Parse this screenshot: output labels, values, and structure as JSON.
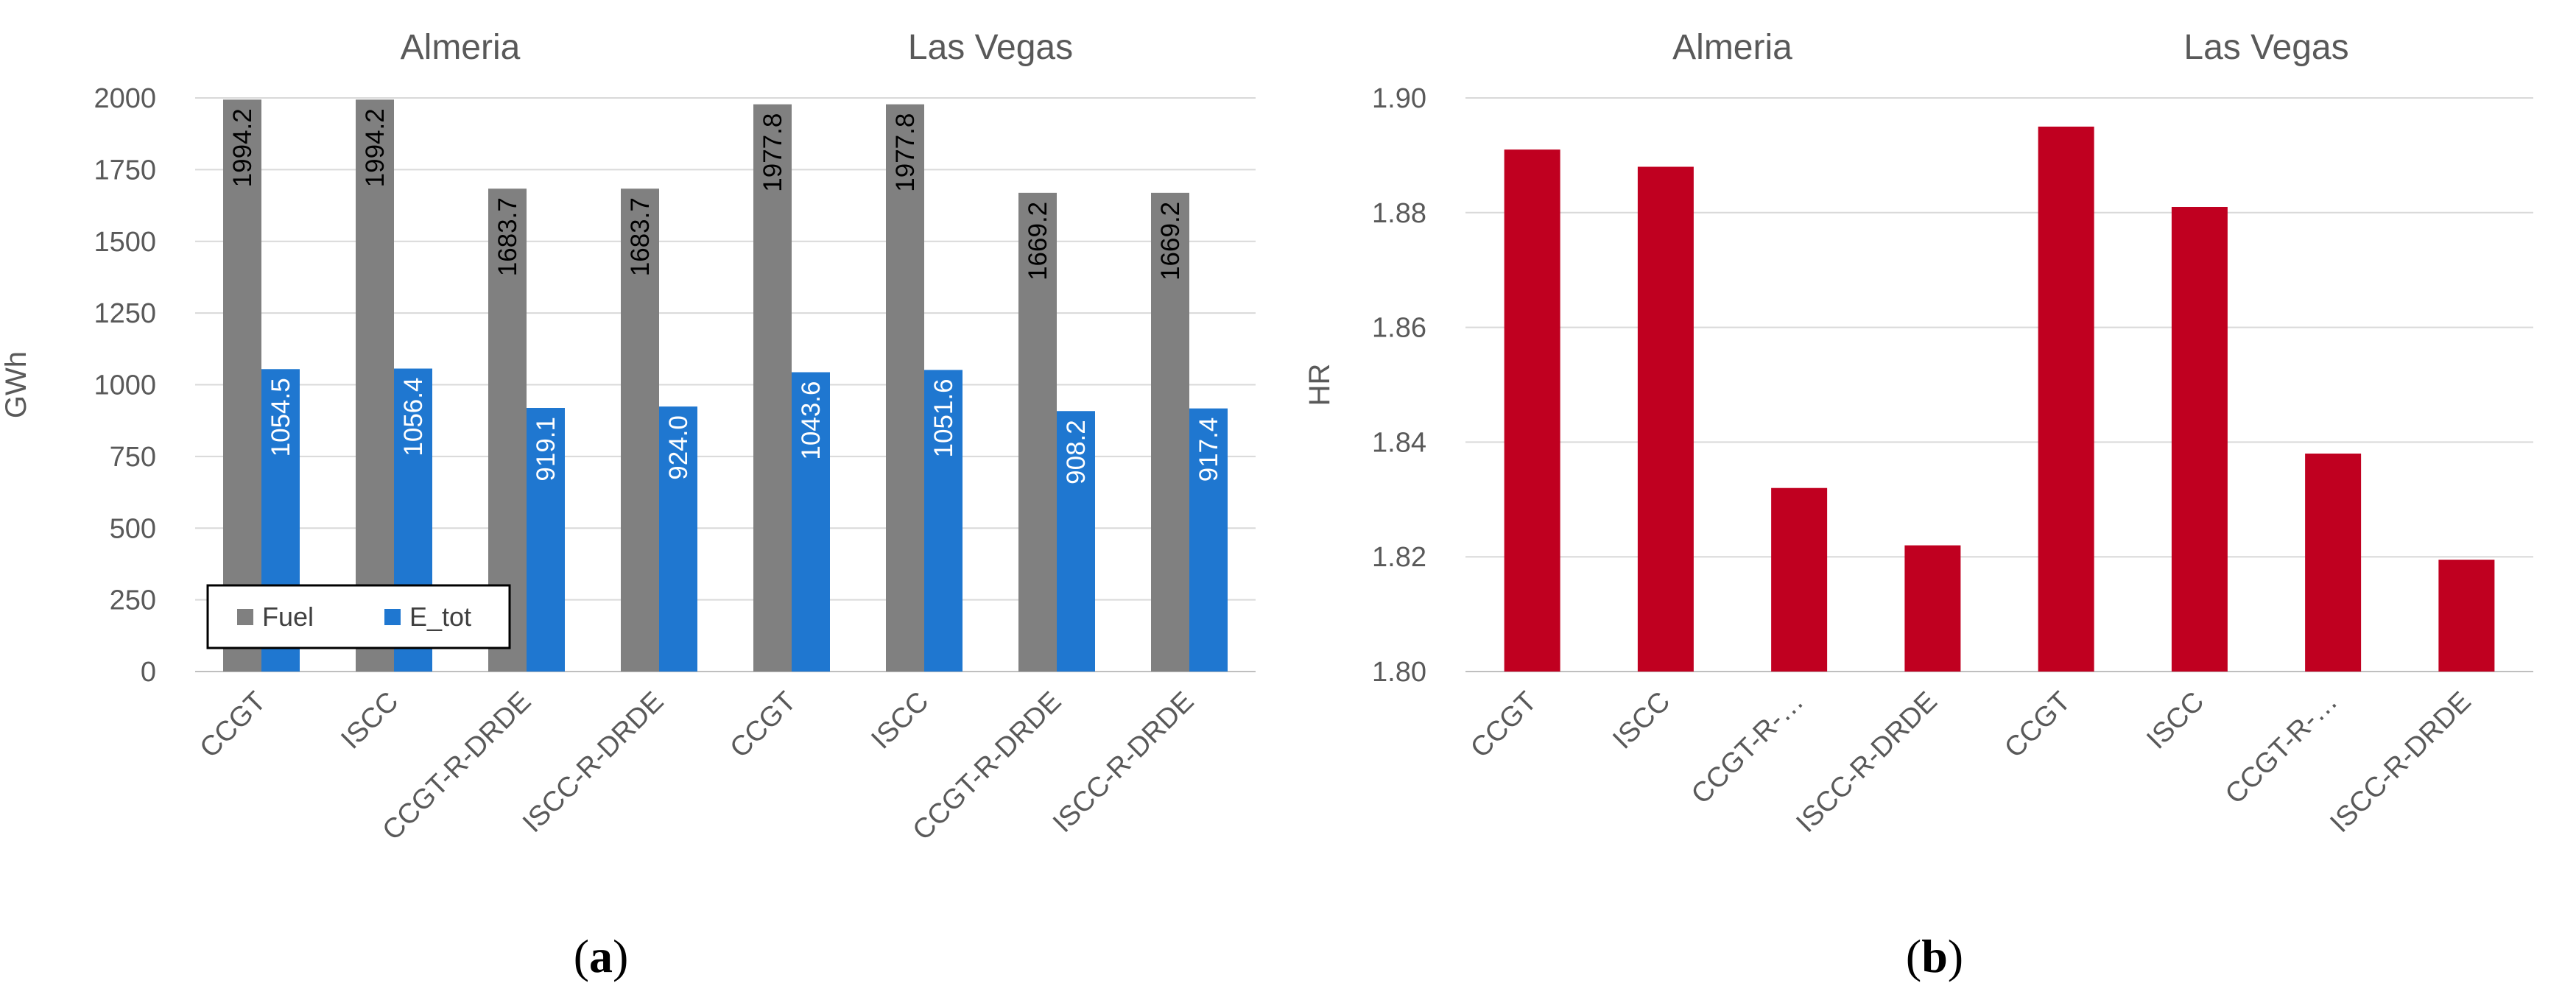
{
  "chart_data": [
    {
      "id": "a",
      "type": "bar",
      "panel_label": "(a)",
      "panel_letter": "a",
      "groups": [
        "Almeria",
        "Las Vegas"
      ],
      "categories": [
        "CCGT",
        "ISCC",
        "CCGT-R-DRDE",
        "ISCC-R-DRDE",
        "CCGT",
        "ISCC",
        "CCGT-R-DRDE",
        "ISCC-R-DRDE"
      ],
      "series": [
        {
          "name": "Fuel",
          "color": "#808080",
          "label_color": "#000000",
          "values": [
            1994.2,
            1994.2,
            1683.7,
            1683.7,
            1977.8,
            1977.8,
            1669.2,
            1669.2
          ],
          "labels": [
            "1994.2",
            "1994.2",
            "1683.7",
            "1683.7",
            "1977.8",
            "1977.8",
            "1669.2",
            "1669.2"
          ]
        },
        {
          "name": "E_tot",
          "color": "#1f77d0",
          "label_color": "#ffffff",
          "values": [
            1054.5,
            1056.4,
            919.1,
            924.0,
            1043.6,
            1051.6,
            908.2,
            917.4
          ],
          "labels": [
            "1054.5",
            "1056.4",
            "919.1",
            "924.0",
            "1043.6",
            "1051.6",
            "908.2",
            "917.4"
          ]
        }
      ],
      "ylabel": "GWh",
      "ylim": [
        0,
        2000
      ],
      "yticks": [
        "0",
        "250",
        "500",
        "750",
        "1000",
        "1250",
        "1500",
        "1750",
        "2000"
      ],
      "grid": true,
      "legend": "bottom-left"
    },
    {
      "id": "b",
      "type": "bar",
      "panel_label": "(b)",
      "panel_letter": "b",
      "groups": [
        "Almeria",
        "Las Vegas"
      ],
      "categories": [
        "CCGT",
        "ISCC",
        "CCGT-R-…",
        "ISCC-R-DRDE",
        "CCGT",
        "ISCC",
        "CCGT-R-…",
        "ISCC-R-DRDE"
      ],
      "series": [
        {
          "color": "#c00020",
          "values": [
            1.891,
            1.888,
            1.832,
            1.822,
            1.895,
            1.881,
            1.838,
            1.8195
          ]
        }
      ],
      "ylabel": "HR",
      "ylim": [
        1.8,
        1.9
      ],
      "yticks": [
        "1.80",
        "1.82",
        "1.84",
        "1.86",
        "1.88",
        "1.90"
      ],
      "grid": true,
      "legend": "none"
    }
  ]
}
